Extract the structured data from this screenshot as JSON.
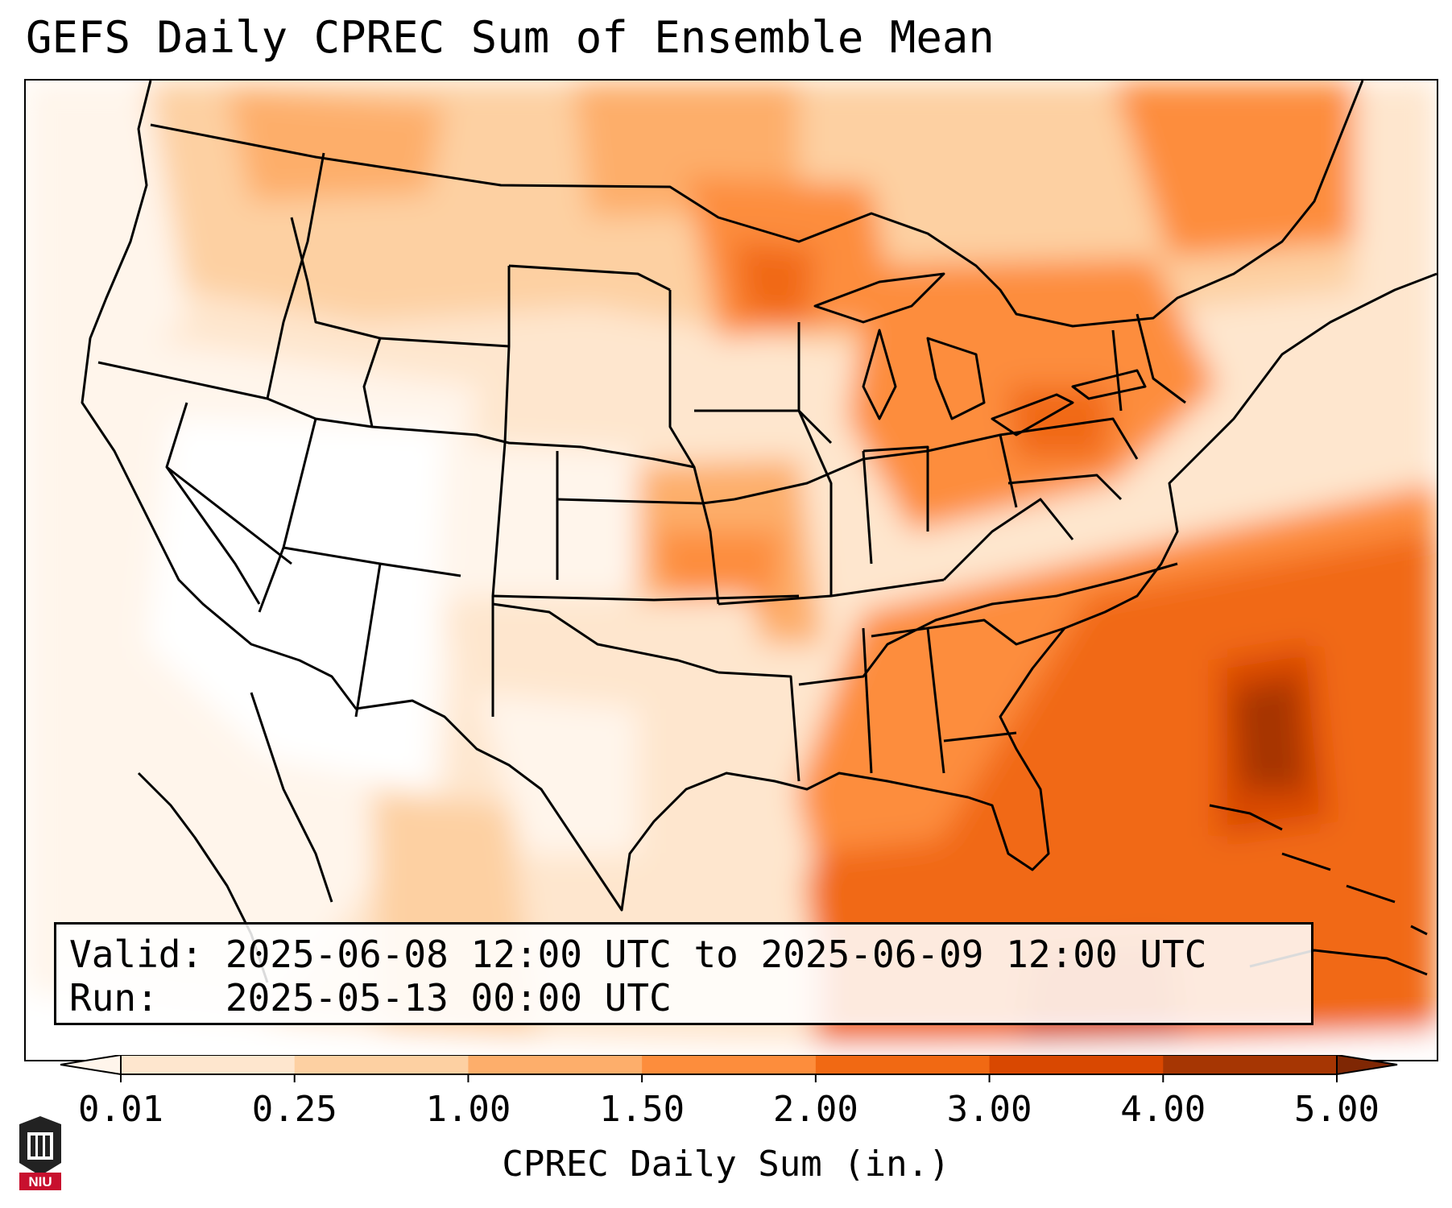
{
  "title": "GEFS Daily CPREC Sum of Ensemble Mean",
  "info": {
    "valid_label": "Valid:",
    "valid_value": "2025-06-08 12:00 UTC to 2025-06-09 12:00 UTC",
    "run_label": "Run:",
    "run_value": "2025-05-13 00:00 UTC"
  },
  "colorbar": {
    "label": "CPREC Daily Sum (in.)",
    "ticks": [
      "0.01",
      "0.25",
      "1.00",
      "1.50",
      "2.00",
      "3.00",
      "4.00",
      "5.00"
    ],
    "colors": [
      "#fff5eb",
      "#fee6ce",
      "#fdd0a2",
      "#fdae6b",
      "#fd8d3c",
      "#f16913",
      "#d94801",
      "#a63603",
      "#7f2704"
    ],
    "extend": "both"
  },
  "logo": {
    "text": "NIU",
    "color": "#c8102e"
  },
  "map": {
    "region": "Continental United States",
    "cmap": "Oranges",
    "boundaries": [
      "coastlines",
      "state-borders",
      "country-borders"
    ]
  }
}
